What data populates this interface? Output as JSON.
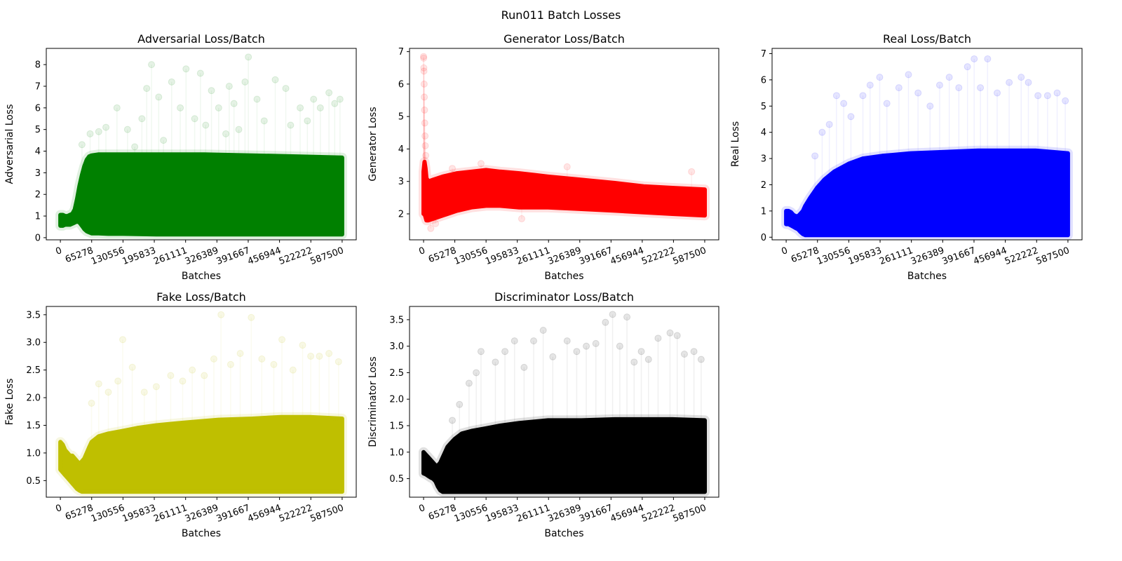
{
  "figure": {
    "title": "Run011 Batch Losses"
  },
  "chart_data": [
    {
      "type": "scatter",
      "title": "Adversarial Loss/Batch",
      "xlabel": "Batches",
      "ylabel": "Adversarial Loss",
      "color": "#008000",
      "xlim": [
        -29375,
        616875
      ],
      "ylim": [
        -0.1,
        8.75
      ],
      "xticks": [
        0,
        65278,
        130556,
        195833,
        261111,
        326389,
        391667,
        456944,
        522222,
        587500
      ],
      "xtick_labels": [
        "0",
        "65278",
        "130556",
        "195833",
        "261111",
        "326389",
        "391667",
        "456944",
        "522222",
        "587500"
      ],
      "yticks": [
        0,
        1,
        2,
        3,
        4,
        5,
        6,
        7,
        8
      ],
      "ytick_labels": [
        "0",
        "1",
        "2",
        "3",
        "4",
        "5",
        "6",
        "7",
        "8"
      ],
      "band": {
        "x": [
          0,
          5000,
          10000,
          15000,
          20000,
          25000,
          30000,
          35000,
          40000,
          45000,
          50000,
          55000,
          60000,
          65278,
          80000,
          100000,
          130556,
          200000,
          300000,
          400000,
          500000,
          587500
        ],
        "low": [
          0.55,
          0.55,
          0.6,
          0.6,
          0.6,
          0.65,
          0.7,
          0.75,
          0.7,
          0.55,
          0.4,
          0.3,
          0.25,
          0.2,
          0.2,
          0.18,
          0.18,
          0.15,
          0.15,
          0.15,
          0.15,
          0.15
        ],
        "high": [
          1.05,
          1.05,
          1.0,
          1.0,
          1.05,
          1.1,
          1.3,
          1.8,
          2.4,
          2.9,
          3.3,
          3.6,
          3.75,
          3.8,
          3.85,
          3.85,
          3.85,
          3.85,
          3.85,
          3.8,
          3.75,
          3.7
        ]
      },
      "outliers": [
        [
          45000,
          4.3
        ],
        [
          62000,
          4.8
        ],
        [
          80000,
          4.9
        ],
        [
          95000,
          5.1
        ],
        [
          118000,
          6.0
        ],
        [
          140000,
          5.0
        ],
        [
          155000,
          4.2
        ],
        [
          170000,
          5.5
        ],
        [
          180000,
          6.9
        ],
        [
          190000,
          8.0
        ],
        [
          205000,
          6.5
        ],
        [
          215000,
          4.5
        ],
        [
          232000,
          7.2
        ],
        [
          250000,
          6.0
        ],
        [
          262000,
          7.8
        ],
        [
          280000,
          5.5
        ],
        [
          292000,
          7.6
        ],
        [
          303000,
          5.2
        ],
        [
          315000,
          6.8
        ],
        [
          330000,
          6.0
        ],
        [
          345000,
          4.8
        ],
        [
          352000,
          7.0
        ],
        [
          362000,
          6.2
        ],
        [
          372000,
          5.0
        ],
        [
          385000,
          7.2
        ],
        [
          392000,
          8.35
        ],
        [
          410000,
          6.4
        ],
        [
          425000,
          5.4
        ],
        [
          448000,
          7.3
        ],
        [
          470000,
          6.9
        ],
        [
          480000,
          5.2
        ],
        [
          500000,
          6.0
        ],
        [
          515000,
          5.4
        ],
        [
          528000,
          6.4
        ],
        [
          542000,
          6.0
        ],
        [
          560000,
          6.7
        ],
        [
          572000,
          6.2
        ],
        [
          583000,
          6.4
        ]
      ]
    },
    {
      "type": "scatter",
      "title": "Generator Loss/Batch",
      "xlabel": "Batches",
      "ylabel": "Generator Loss",
      "color": "#ff0000",
      "xlim": [
        -29375,
        616875
      ],
      "ylim": [
        1.2,
        7.1
      ],
      "xticks": [
        0,
        65278,
        130556,
        195833,
        261111,
        326389,
        391667,
        456944,
        522222,
        587500
      ],
      "xtick_labels": [
        "0",
        "65278",
        "130556",
        "195833",
        "261111",
        "326389",
        "391667",
        "456944",
        "522222",
        "587500"
      ],
      "yticks": [
        2,
        3,
        4,
        5,
        6,
        7
      ],
      "ytick_labels": [
        "2",
        "3",
        "4",
        "5",
        "6",
        "7"
      ],
      "band": {
        "x": [
          0,
          2000,
          4000,
          6000,
          10000,
          20000,
          40000,
          70000,
          100000,
          130556,
          160000,
          200000,
          260000,
          330000,
          400000,
          460000,
          520000,
          587500
        ],
        "low": [
          2.0,
          2.0,
          1.9,
          1.8,
          1.8,
          1.85,
          1.95,
          2.1,
          2.2,
          2.25,
          2.25,
          2.2,
          2.2,
          2.15,
          2.1,
          2.05,
          2.0,
          1.95
        ],
        "high": [
          3.3,
          3.6,
          3.4,
          3.1,
          3.0,
          3.05,
          3.15,
          3.25,
          3.3,
          3.35,
          3.3,
          3.25,
          3.15,
          3.05,
          2.95,
          2.85,
          2.8,
          2.75
        ]
      },
      "outliers": [
        [
          0,
          6.85
        ],
        [
          200,
          6.8
        ],
        [
          500,
          6.5
        ],
        [
          800,
          6.4
        ],
        [
          1200,
          6.0
        ],
        [
          1500,
          5.6
        ],
        [
          2000,
          5.2
        ],
        [
          2500,
          4.8
        ],
        [
          3000,
          4.4
        ],
        [
          3500,
          4.1
        ],
        [
          4500,
          3.8
        ],
        [
          15000,
          1.55
        ],
        [
          25000,
          1.7
        ],
        [
          60000,
          3.4
        ],
        [
          120000,
          3.55
        ],
        [
          205000,
          1.85
        ],
        [
          300000,
          3.45
        ],
        [
          560000,
          3.3
        ]
      ]
    },
    {
      "type": "scatter",
      "title": "Real Loss/Batch",
      "xlabel": "Batches",
      "ylabel": "Real Loss",
      "color": "#0000ff",
      "xlim": [
        -29375,
        616875
      ],
      "ylim": [
        -0.1,
        7.2
      ],
      "xticks": [
        0,
        65278,
        130556,
        195833,
        261111,
        326389,
        391667,
        456944,
        522222,
        587500
      ],
      "xtick_labels": [
        "0",
        "65278",
        "130556",
        "195833",
        "261111",
        "326389",
        "391667",
        "456944",
        "522222",
        "587500"
      ],
      "yticks": [
        0,
        1,
        2,
        3,
        4,
        5,
        6,
        7
      ],
      "ytick_labels": [
        "0",
        "1",
        "2",
        "3",
        "4",
        "5",
        "6",
        "7"
      ],
      "band": {
        "x": [
          0,
          5000,
          10000,
          15000,
          20000,
          25000,
          30000,
          35000,
          40000,
          50000,
          65278,
          80000,
          100000,
          130556,
          160000,
          200000,
          260000,
          330000,
          400000,
          460000,
          520000,
          587500
        ],
        "low": [
          0.5,
          0.5,
          0.45,
          0.4,
          0.35,
          0.3,
          0.2,
          0.12,
          0.08,
          0.08,
          0.08,
          0.08,
          0.08,
          0.08,
          0.08,
          0.08,
          0.08,
          0.08,
          0.08,
          0.08,
          0.08,
          0.08
        ],
        "high": [
          1.0,
          1.0,
          0.95,
          0.85,
          0.8,
          0.8,
          0.9,
          1.0,
          1.2,
          1.5,
          1.9,
          2.2,
          2.5,
          2.8,
          3.0,
          3.1,
          3.2,
          3.25,
          3.3,
          3.3,
          3.3,
          3.2
        ]
      },
      "outliers": [
        [
          60000,
          3.1
        ],
        [
          75000,
          4.0
        ],
        [
          90000,
          4.3
        ],
        [
          105000,
          5.4
        ],
        [
          120000,
          5.1
        ],
        [
          135000,
          4.6
        ],
        [
          160000,
          5.4
        ],
        [
          175000,
          5.8
        ],
        [
          195000,
          6.1
        ],
        [
          210000,
          5.1
        ],
        [
          235000,
          5.7
        ],
        [
          255000,
          6.2
        ],
        [
          275000,
          5.5
        ],
        [
          300000,
          5.0
        ],
        [
          320000,
          5.8
        ],
        [
          340000,
          6.1
        ],
        [
          360000,
          5.7
        ],
        [
          378000,
          6.5
        ],
        [
          392000,
          6.8
        ],
        [
          405000,
          5.7
        ],
        [
          420000,
          6.8
        ],
        [
          440000,
          5.5
        ],
        [
          465000,
          5.9
        ],
        [
          490000,
          6.1
        ],
        [
          505000,
          5.9
        ],
        [
          525000,
          5.4
        ],
        [
          545000,
          5.4
        ],
        [
          565000,
          5.5
        ],
        [
          582000,
          5.2
        ]
      ]
    },
    {
      "type": "scatter",
      "title": "Fake Loss/Batch",
      "xlabel": "Batches",
      "ylabel": "Fake Loss",
      "color": "#bfbf00",
      "xlim": [
        -29375,
        616875
      ],
      "ylim": [
        0.2,
        3.65
      ],
      "xticks": [
        0,
        65278,
        130556,
        195833,
        261111,
        326389,
        391667,
        456944,
        522222,
        587500
      ],
      "xtick_labels": [
        "0",
        "65278",
        "130556",
        "195833",
        "261111",
        "326389",
        "391667",
        "456944",
        "522222",
        "587500"
      ],
      "yticks": [
        0.5,
        1.0,
        1.5,
        2.0,
        2.5,
        3.0,
        3.5
      ],
      "ytick_labels": [
        "0.5",
        "1.0",
        "1.5",
        "2.0",
        "2.5",
        "3.0",
        "3.5"
      ],
      "band": {
        "x": [
          0,
          5000,
          10000,
          15000,
          20000,
          25000,
          30000,
          35000,
          40000,
          45000,
          50000,
          55000,
          60000,
          65278,
          80000,
          100000,
          130556,
          160000,
          200000,
          260000,
          330000,
          400000,
          460000,
          520000,
          587500
        ],
        "low": [
          0.7,
          0.65,
          0.6,
          0.55,
          0.5,
          0.45,
          0.4,
          0.35,
          0.32,
          0.3,
          0.3,
          0.3,
          0.3,
          0.3,
          0.3,
          0.3,
          0.3,
          0.3,
          0.3,
          0.3,
          0.3,
          0.3,
          0.3,
          0.3,
          0.3
        ],
        "high": [
          1.2,
          1.15,
          1.05,
          1.0,
          0.95,
          0.95,
          0.9,
          0.85,
          0.8,
          0.85,
          0.9,
          1.0,
          1.1,
          1.2,
          1.3,
          1.35,
          1.4,
          1.45,
          1.5,
          1.55,
          1.6,
          1.62,
          1.65,
          1.65,
          1.62
        ]
      },
      "outliers": [
        [
          65000,
          1.9
        ],
        [
          80000,
          2.25
        ],
        [
          100000,
          2.1
        ],
        [
          120000,
          2.3
        ],
        [
          130000,
          3.05
        ],
        [
          150000,
          2.55
        ],
        [
          175000,
          2.1
        ],
        [
          200000,
          2.2
        ],
        [
          230000,
          2.4
        ],
        [
          255000,
          2.3
        ],
        [
          275000,
          2.5
        ],
        [
          300000,
          2.4
        ],
        [
          320000,
          2.7
        ],
        [
          335000,
          3.5
        ],
        [
          355000,
          2.6
        ],
        [
          375000,
          2.8
        ],
        [
          398000,
          3.45
        ],
        [
          420000,
          2.7
        ],
        [
          445000,
          2.6
        ],
        [
          462000,
          3.05
        ],
        [
          485000,
          2.5
        ],
        [
          505000,
          2.95
        ],
        [
          522000,
          2.75
        ],
        [
          540000,
          2.75
        ],
        [
          560000,
          2.8
        ],
        [
          580000,
          2.65
        ]
      ]
    },
    {
      "type": "scatter",
      "title": "Discriminator Loss/Batch",
      "xlabel": "Batches",
      "ylabel": "Discriminator Loss",
      "color": "#000000",
      "xlim": [
        -29375,
        616875
      ],
      "ylim": [
        0.15,
        3.75
      ],
      "xticks": [
        0,
        65278,
        130556,
        195833,
        261111,
        326389,
        391667,
        456944,
        522222,
        587500
      ],
      "xtick_labels": [
        "0",
        "65278",
        "130556",
        "195833",
        "261111",
        "326389",
        "391667",
        "456944",
        "522222",
        "587500"
      ],
      "yticks": [
        0.5,
        1.0,
        1.5,
        2.0,
        2.5,
        3.0,
        3.5
      ],
      "ytick_labels": [
        "0.5",
        "1.0",
        "1.5",
        "2.0",
        "2.5",
        "3.0",
        "3.5"
      ],
      "band": {
        "x": [
          0,
          5000,
          10000,
          15000,
          20000,
          25000,
          30000,
          35000,
          40000,
          45000,
          50000,
          55000,
          60000,
          65278,
          80000,
          100000,
          130556,
          160000,
          200000,
          260000,
          330000,
          400000,
          460000,
          520000,
          587500
        ],
        "low": [
          0.6,
          0.58,
          0.55,
          0.52,
          0.5,
          0.45,
          0.35,
          0.28,
          0.25,
          0.25,
          0.25,
          0.25,
          0.25,
          0.25,
          0.25,
          0.25,
          0.25,
          0.25,
          0.25,
          0.25,
          0.25,
          0.25,
          0.25,
          0.25,
          0.25
        ],
        "high": [
          1.0,
          0.95,
          0.9,
          0.85,
          0.8,
          0.75,
          0.75,
          0.8,
          0.9,
          1.0,
          1.1,
          1.15,
          1.2,
          1.25,
          1.35,
          1.4,
          1.45,
          1.5,
          1.55,
          1.6,
          1.6,
          1.62,
          1.62,
          1.62,
          1.6
        ]
      },
      "outliers": [
        [
          60000,
          1.6
        ],
        [
          75000,
          1.9
        ],
        [
          95000,
          2.3
        ],
        [
          110000,
          2.5
        ],
        [
          120000,
          2.9
        ],
        [
          150000,
          2.7
        ],
        [
          170000,
          2.9
        ],
        [
          190000,
          3.1
        ],
        [
          210000,
          2.6
        ],
        [
          230000,
          3.1
        ],
        [
          250000,
          3.3
        ],
        [
          270000,
          2.8
        ],
        [
          300000,
          3.1
        ],
        [
          320000,
          2.9
        ],
        [
          340000,
          3.0
        ],
        [
          360000,
          3.05
        ],
        [
          380000,
          3.45
        ],
        [
          395000,
          3.6
        ],
        [
          410000,
          3.0
        ],
        [
          425000,
          3.55
        ],
        [
          440000,
          2.7
        ],
        [
          455000,
          2.9
        ],
        [
          470000,
          2.75
        ],
        [
          490000,
          3.15
        ],
        [
          515000,
          3.25
        ],
        [
          530000,
          3.2
        ],
        [
          545000,
          2.85
        ],
        [
          565000,
          2.9
        ],
        [
          580000,
          2.75
        ]
      ]
    }
  ]
}
